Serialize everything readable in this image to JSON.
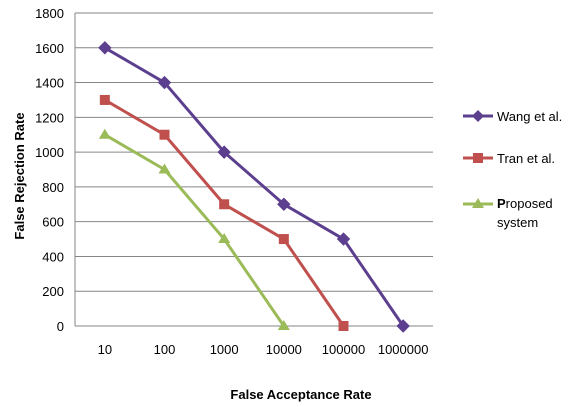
{
  "chart_data": {
    "type": "line",
    "title": "",
    "xlabel": "False Acceptance Rate",
    "ylabel": "False Rejection Rate",
    "categories": [
      "10",
      "100",
      "1000",
      "10000",
      "100000",
      "1000000"
    ],
    "ylim": [
      0,
      1800
    ],
    "yticks": [
      0,
      200,
      400,
      600,
      800,
      1000,
      1200,
      1400,
      1600,
      1800
    ],
    "grid": "horizontal",
    "legend_position": "right",
    "series": [
      {
        "name": "Wang et al.",
        "color": "#5c3f8e",
        "marker": "diamond",
        "values": [
          1600,
          1400,
          1000,
          700,
          500,
          0
        ]
      },
      {
        "name": "Tran et al.",
        "color": "#c0504d",
        "marker": "square",
        "values": [
          1300,
          1100,
          700,
          500,
          0,
          null
        ]
      },
      {
        "name_first_letter": "P",
        "name_rest_line1": "roposed",
        "name_line2": "system",
        "color": "#9bbb59",
        "marker": "triangle",
        "values": [
          1100,
          900,
          500,
          0,
          null,
          null
        ]
      }
    ]
  }
}
